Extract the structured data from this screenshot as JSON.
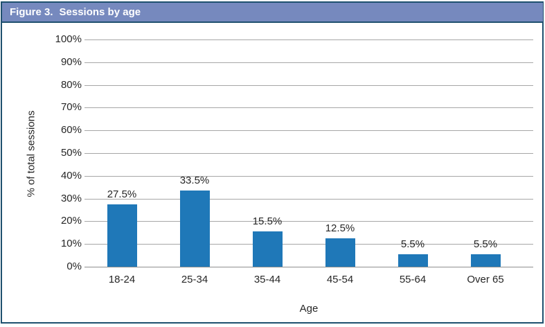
{
  "header": {
    "figure_label": "Figure 3.",
    "title": "Sessions by age"
  },
  "chart_data": {
    "type": "bar",
    "title": "Sessions by age",
    "categories": [
      "18-24",
      "25-34",
      "35-44",
      "45-54",
      "55-64",
      "Over 65"
    ],
    "values": [
      27.5,
      33.5,
      15.5,
      12.5,
      5.5,
      5.5
    ],
    "value_labels": [
      "27.5%",
      "33.5%",
      "15.5%",
      "12.5%",
      "5.5%",
      "5.5%"
    ],
    "xlabel": "Age",
    "ylabel": "% of total sessions",
    "ylim": [
      0,
      100
    ],
    "ytick_step": 10,
    "ytick_labels": [
      "0%",
      "10%",
      "20%",
      "30%",
      "40%",
      "50%",
      "60%",
      "70%",
      "80%",
      "90%",
      "100%"
    ],
    "grid": "horizontal",
    "legend": "none",
    "bar_color": "#1F78B8"
  },
  "colors": {
    "header_bg": "#7689BE",
    "frame_border": "#1E506E",
    "gridline": "#A6A6A6",
    "text": "#262626",
    "header_text": "#FFFFFF"
  }
}
